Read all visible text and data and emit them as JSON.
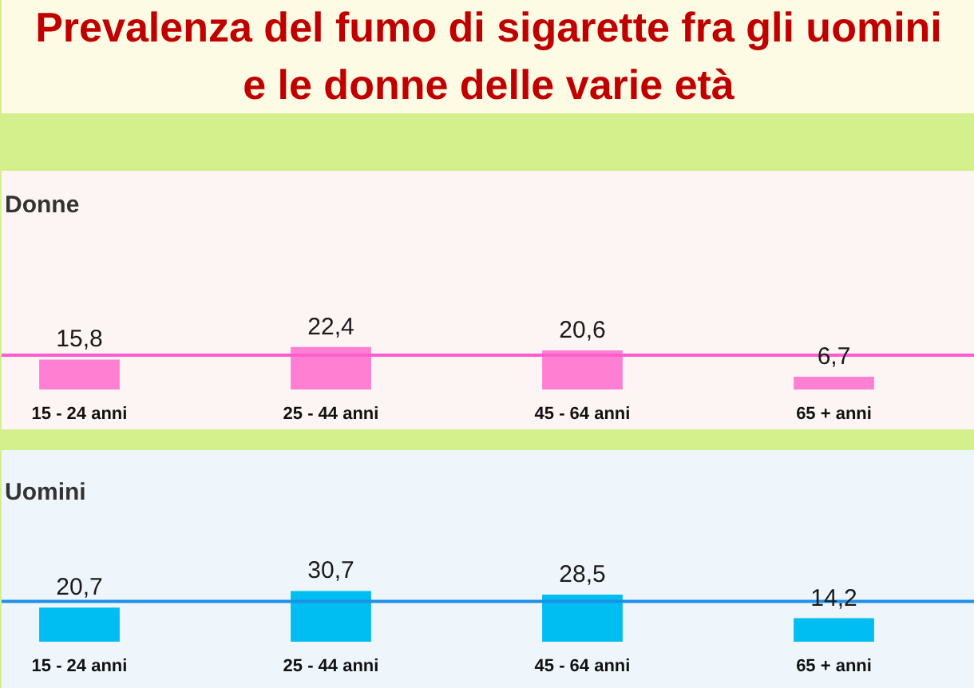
{
  "chart_data": [
    {
      "type": "other",
      "title": "Prevalenza del fumo di sigarette fra gli uomini\ne le donne delle varie età"
    },
    {
      "type": "bar",
      "title": "Donne",
      "categories": [
        "15 - 24 anni",
        "25 - 44 anni",
        "45 - 64 anni",
        "65 + anni"
      ],
      "values": [
        15.8,
        22.4,
        20.6,
        6.7
      ],
      "color": "#ff80d2",
      "value_labels": [
        "15,8",
        "22,4",
        "20,6",
        "6,7"
      ],
      "tick_labels": "x",
      "ref_lines": [
        {
          "axis": "y",
          "value": 18.1,
          "color": "#ff5ccf"
        }
      ]
    },
    {
      "type": "bar",
      "title": "Uomini",
      "categories": [
        "15 - 24 anni",
        "25 - 44 anni",
        "45 - 64 anni",
        "65 + anni"
      ],
      "values": [
        20.7,
        30.7,
        28.5,
        14.2
      ],
      "color": "#00bdf2",
      "value_labels": [
        "20,7",
        "30,7",
        "28,5",
        "14,2"
      ],
      "tick_labels": "x",
      "ref_lines": [
        {
          "axis": "y",
          "value": 24.4,
          "color": "#1e8fe6"
        }
      ]
    }
  ]
}
